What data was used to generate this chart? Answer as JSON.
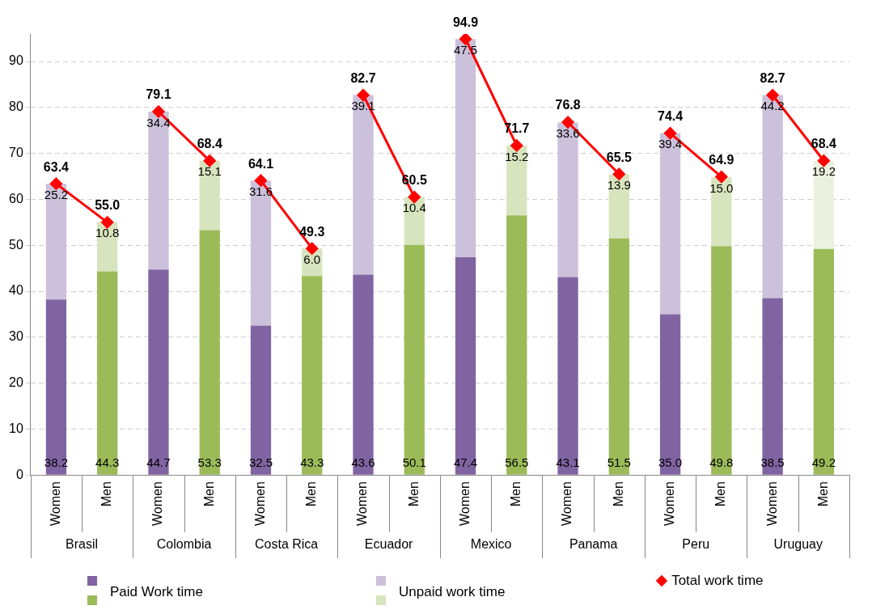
{
  "chart_data": {
    "type": "bar",
    "stacked": true,
    "categories": [
      "Women",
      "Men",
      "Women",
      "Men",
      "Women",
      "Men",
      "Women",
      "Men",
      "Women",
      "Men",
      "Women",
      "Men",
      "Women",
      "Men",
      "Women",
      "Men"
    ],
    "annotations": [
      "Brasil",
      "Colombia",
      "Costa Rica",
      "Ecuador",
      "Mexico",
      "Panama",
      "Peru",
      "Uruguay"
    ],
    "series": [
      {
        "name": "Paid Work time",
        "colors": [
          "#8064a2",
          "#9bbb59",
          "#8064a2",
          "#9bbb59",
          "#8064a2",
          "#9bbb59",
          "#8064a2",
          "#9bbb59",
          "#8064a2",
          "#9bbb59",
          "#8064a2",
          "#9bbb59",
          "#8064a2",
          "#9bbb59",
          "#8064a2",
          "#9bbb59"
        ],
        "values": [
          38.2,
          44.3,
          44.7,
          53.3,
          32.5,
          43.3,
          43.6,
          50.1,
          47.4,
          56.5,
          43.1,
          51.5,
          35.0,
          49.8,
          38.5,
          49.2
        ],
        "value_labels": [
          "38.2",
          "44.3",
          "44.7",
          "53.3",
          "32.5",
          "43.3",
          "43.6",
          "50.1",
          "47.4",
          "56.5",
          "43.1",
          "51.5",
          "35.0",
          "49.8",
          "38.5",
          "49.2"
        ]
      },
      {
        "name": "Unpaid work time",
        "colors": [
          "#ccc1da",
          "#d7e4bd",
          "#ccc1da",
          "#d7e4bd",
          "#ccc1da",
          "#d7e4bd",
          "#ccc1da",
          "#d7e4bd",
          "#ccc1da",
          "#d7e4bd",
          "#ccc1da",
          "#d7e4bd",
          "#ccc1da",
          "#d7e4bd",
          "#ccc1da",
          "#ebf1de"
        ],
        "values": [
          25.2,
          10.8,
          34.4,
          15.1,
          31.6,
          6.0,
          39.1,
          10.4,
          47.5,
          15.2,
          33.6,
          13.9,
          39.4,
          15.0,
          44.2,
          19.2
        ],
        "value_labels": [
          "25.2",
          "10.8",
          "34.4",
          "15.1",
          "31.6",
          "6.0",
          "39.1",
          "10.4",
          "47.5",
          "15.2",
          "33.6",
          "13.9",
          "39.4",
          "15.0",
          "44.2",
          "19.2"
        ]
      },
      {
        "name": "Total work time",
        "type": "line",
        "color": "#ff0000",
        "values": [
          63.4,
          55.0,
          79.1,
          68.4,
          64.1,
          49.3,
          82.7,
          60.5,
          94.9,
          71.7,
          76.8,
          65.5,
          74.4,
          64.9,
          82.7,
          68.4
        ],
        "value_labels": [
          "63.4",
          "55.0",
          "79.1",
          "68.4",
          "64.1",
          "49.3",
          "82.7",
          "60.5",
          "94.9",
          "71.7",
          "76.8",
          "65.5",
          "74.4",
          "64.9",
          "82.7",
          "68.4"
        ]
      }
    ],
    "ylim": [
      0,
      96
    ],
    "yticks": [
      0,
      10,
      20,
      30,
      40,
      50,
      60,
      70,
      80,
      90
    ],
    "grid": "y",
    "legend": "bottom",
    "marker": "diamond"
  }
}
